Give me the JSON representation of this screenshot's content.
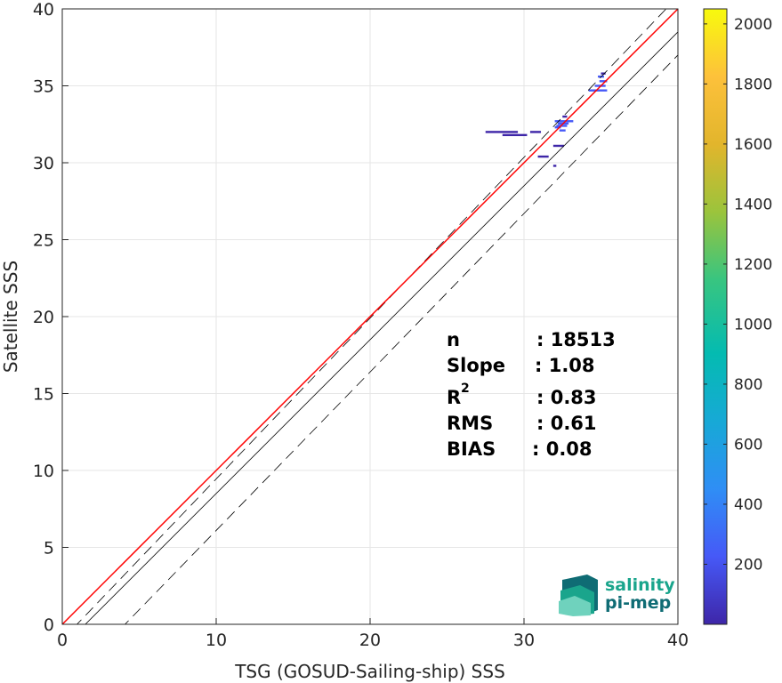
{
  "chart_data": {
    "type": "heatmap",
    "title": "",
    "xlabel": "TSG (GOSUD-Sailing-ship) SSS",
    "ylabel": "Satellite SSS",
    "xlim": [
      0,
      40
    ],
    "ylim": [
      0,
      40
    ],
    "xticks": [
      "0",
      "10",
      "20",
      "30",
      "40"
    ],
    "yticks": [
      "0",
      "5",
      "10",
      "15",
      "20",
      "25",
      "30",
      "35",
      "40"
    ],
    "grid": true,
    "colorbar": {
      "range": [
        0,
        2050
      ],
      "ticks": [
        "200",
        "400",
        "600",
        "800",
        "1000",
        "1200",
        "1400",
        "1600",
        "1800",
        "2000"
      ],
      "colors": [
        "#3e26a8",
        "#4659f7",
        "#2f8ef5",
        "#17a9d6",
        "#04bbb1",
        "#38c580",
        "#9bc43c",
        "#e2b52c",
        "#fdc13b",
        "#f8fa0d"
      ]
    },
    "lines": [
      {
        "name": "identity",
        "color": "#000000",
        "style": "solid",
        "points": [
          [
            0,
            -1.5
          ],
          [
            40,
            38.5
          ]
        ]
      },
      {
        "name": "upper-bound",
        "color": "#000000",
        "style": "dashed",
        "points": [
          [
            0,
            -1.0
          ],
          [
            40,
            40.8
          ]
        ]
      },
      {
        "name": "lower-bound",
        "color": "#000000",
        "style": "dashed",
        "points": [
          [
            0,
            -4.2
          ],
          [
            40,
            37.0
          ]
        ]
      },
      {
        "name": "regression",
        "color": "#ff0000",
        "style": "solid",
        "points": [
          [
            0,
            0.0
          ],
          [
            40,
            40.0
          ]
        ]
      }
    ],
    "density_cells": [
      {
        "x0": 27.5,
        "x1": 29.6,
        "y": 32.0,
        "count": 80
      },
      {
        "x0": 28.6,
        "x1": 30.2,
        "y": 31.8,
        "count": 60
      },
      {
        "x0": 30.4,
        "x1": 31.1,
        "y": 32.0,
        "count": 50
      },
      {
        "x0": 30.9,
        "x1": 31.6,
        "y": 30.4,
        "count": 90
      },
      {
        "x0": 31.9,
        "x1": 32.6,
        "y": 31.1,
        "count": 70
      },
      {
        "x0": 32.0,
        "x1": 33.2,
        "y": 32.7,
        "count": 150
      },
      {
        "x0": 32.1,
        "x1": 32.8,
        "y": 32.4,
        "count": 220
      },
      {
        "x0": 32.3,
        "x1": 32.7,
        "y": 32.1,
        "count": 300
      },
      {
        "x0": 32.0,
        "x1": 32.4,
        "y": 32.3,
        "count": 120
      },
      {
        "x0": 32.2,
        "x1": 32.9,
        "y": 32.55,
        "count": 180
      },
      {
        "x0": 32.5,
        "x1": 32.8,
        "y": 33.0,
        "count": 90
      },
      {
        "x0": 31.9,
        "x1": 32.1,
        "y": 29.8,
        "count": 40
      },
      {
        "x0": 34.2,
        "x1": 35.4,
        "y": 34.7,
        "count": 150
      },
      {
        "x0": 34.6,
        "x1": 35.3,
        "y": 35.0,
        "count": 260
      },
      {
        "x0": 34.9,
        "x1": 35.4,
        "y": 35.3,
        "count": 320
      },
      {
        "x0": 34.8,
        "x1": 35.2,
        "y": 35.6,
        "count": 140
      },
      {
        "x0": 35.0,
        "x1": 35.3,
        "y": 35.8,
        "count": 80
      }
    ]
  },
  "stats": [
    {
      "label": "n",
      "value": ": 18513"
    },
    {
      "label": "Slope",
      "value": ": 1.08"
    },
    {
      "label": "R",
      "sup": "2",
      "value": ": 0.83"
    },
    {
      "label": "RMS",
      "value": ": 0.61"
    },
    {
      "label": "BIAS",
      "value": ": 0.08"
    }
  ],
  "logo": {
    "line1": "salinity",
    "line2": "pi-mep",
    "color1": "#1aa58c",
    "color2": "#0f6c74"
  }
}
